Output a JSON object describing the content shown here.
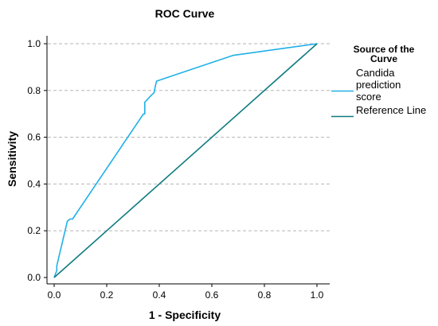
{
  "chart_data": {
    "type": "line",
    "title": "ROC Curve",
    "xlabel": "1 - Specificity",
    "ylabel": "Sensitivity",
    "xlim": [
      0.0,
      1.0
    ],
    "ylim": [
      0.0,
      1.0
    ],
    "xticks": [
      "0.0",
      "0.2",
      "0.4",
      "0.6",
      "0.8",
      "1.0"
    ],
    "yticks": [
      "0.0",
      "0.2",
      "0.4",
      "0.6",
      "0.8",
      "1.0"
    ],
    "grid": "horizontal dashed",
    "legend": {
      "title_lines": [
        "Source of the",
        "Curve"
      ],
      "placement": "right"
    },
    "series": [
      {
        "name_lines": [
          "Candida",
          "prediction",
          "score"
        ],
        "color": "#1fb0e6",
        "x": [
          0.0,
          0.01,
          0.01,
          0.05,
          0.06,
          0.07,
          0.34,
          0.345,
          0.345,
          0.37,
          0.38,
          0.385,
          0.39,
          0.68,
          1.0
        ],
        "y": [
          0.0,
          0.03,
          0.05,
          0.24,
          0.25,
          0.25,
          0.7,
          0.7,
          0.75,
          0.78,
          0.79,
          0.82,
          0.84,
          0.95,
          1.0
        ]
      },
      {
        "name_lines": [
          "Reference Line"
        ],
        "color": "#0f7b80",
        "x": [
          0.0,
          1.0
        ],
        "y": [
          0.0,
          1.0
        ]
      }
    ]
  }
}
